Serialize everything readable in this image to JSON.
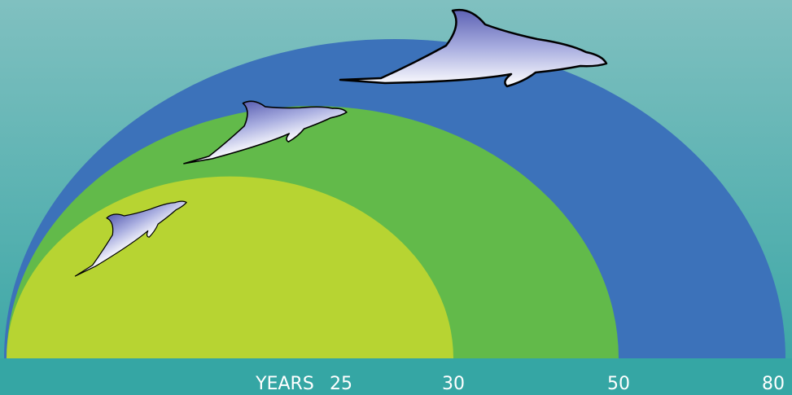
{
  "axis": {
    "title": "YEARS",
    "labels": [
      "25",
      "30",
      "50",
      "80"
    ]
  }
}
